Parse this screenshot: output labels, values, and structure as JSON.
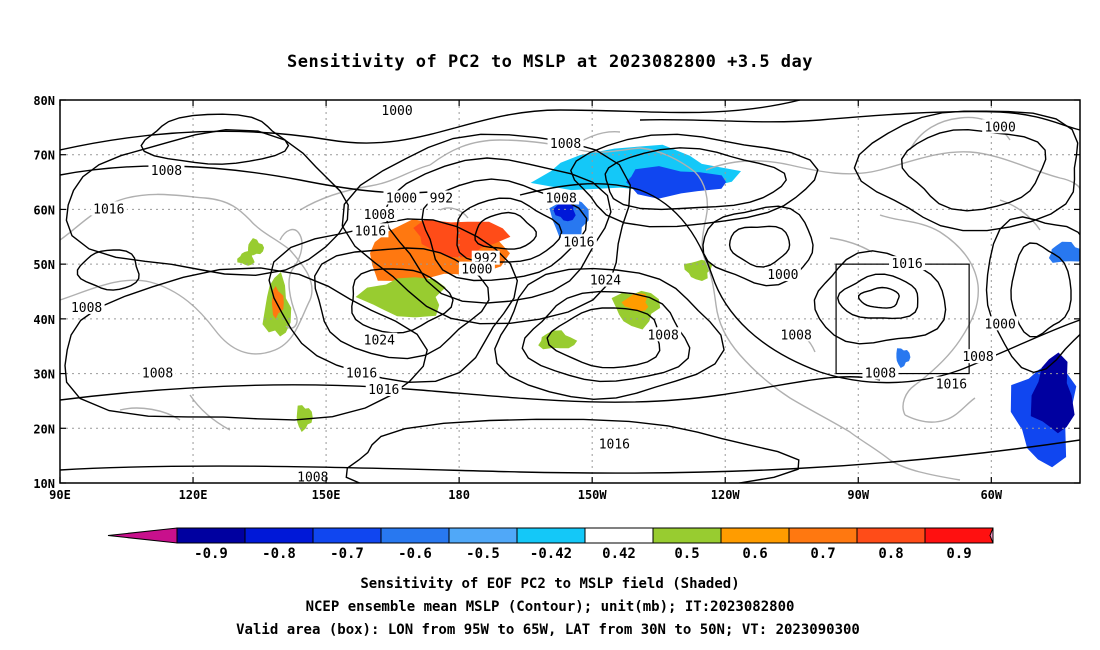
{
  "title": "Sensitivity of PC2 to MSLP at 2023082800 +3.5 day",
  "map": {
    "lon_min": 90,
    "lon_max": 320,
    "lat_min": 10,
    "lat_max": 80,
    "lat_ticks": [
      "10N",
      "20N",
      "30N",
      "40N",
      "50N",
      "60N",
      "70N",
      "80N"
    ],
    "lon_ticks": [
      "90E",
      "120E",
      "150E",
      "180",
      "150W",
      "120W",
      "90W",
      "60W"
    ],
    "grid": "dotted",
    "coastline_color": "#b0b0b0",
    "contour_color": "#000000"
  },
  "valid_box": {
    "lon_west": -95,
    "lon_east": -65,
    "lat_south": 30,
    "lat_north": 50
  },
  "contour_labels": [
    {
      "text": "1000",
      "lon": 166,
      "lat": 78
    },
    {
      "text": "1000",
      "lon": 302,
      "lat": 75
    },
    {
      "text": "1008",
      "lon": 114,
      "lat": 67
    },
    {
      "text": "1008",
      "lon": 204,
      "lat": 72
    },
    {
      "text": "1016",
      "lon": 101,
      "lat": 60
    },
    {
      "text": "1000",
      "lon": 167,
      "lat": 62
    },
    {
      "text": "992",
      "lon": 176,
      "lat": 62
    },
    {
      "text": "1008",
      "lon": 162,
      "lat": 59
    },
    {
      "text": "1016",
      "lon": 160,
      "lat": 56
    },
    {
      "text": "1008",
      "lon": 203,
      "lat": 62
    },
    {
      "text": "1016",
      "lon": 207,
      "lat": 54
    },
    {
      "text": "992",
      "lon": 186,
      "lat": 51
    },
    {
      "text": "1000",
      "lon": 184,
      "lat": 49
    },
    {
      "text": "1024",
      "lon": 213,
      "lat": 47
    },
    {
      "text": "1000",
      "lon": 253,
      "lat": 48
    },
    {
      "text": "1016",
      "lon": 281,
      "lat": 50
    },
    {
      "text": "1008",
      "lon": 96,
      "lat": 42
    },
    {
      "text": "1024",
      "lon": 162,
      "lat": 36
    },
    {
      "text": "1008",
      "lon": 226,
      "lat": 37
    },
    {
      "text": "1008",
      "lon": 256,
      "lat": 37
    },
    {
      "text": "1000",
      "lon": 302,
      "lat": 39
    },
    {
      "text": "1008",
      "lon": 112,
      "lat": 30
    },
    {
      "text": "1016",
      "lon": 158,
      "lat": 30
    },
    {
      "text": "1016",
      "lon": 163,
      "lat": 27
    },
    {
      "text": "1008",
      "lon": 297,
      "lat": 33
    },
    {
      "text": "1008",
      "lon": 275,
      "lat": 30
    },
    {
      "text": "1016",
      "lon": 291,
      "lat": 28
    },
    {
      "text": "1016",
      "lon": 215,
      "lat": 17
    },
    {
      "text": "1008",
      "lon": 147,
      "lat": 11
    }
  ],
  "shaded_regions": [
    {
      "value": -0.45,
      "lon": 220,
      "lat": 67
    },
    {
      "value": -0.6,
      "lon": 228,
      "lat": 65
    },
    {
      "value": -0.5,
      "lon": 205,
      "lat": 58
    },
    {
      "value": -0.7,
      "lon": 204,
      "lat": 60
    },
    {
      "value": -0.5,
      "lon": 317,
      "lat": 52
    },
    {
      "value": -0.5,
      "lon": 280,
      "lat": 33
    },
    {
      "value": -0.6,
      "lon": 312,
      "lat": 23
    },
    {
      "value": -0.8,
      "lon": 314,
      "lat": 26
    },
    {
      "value": 0.6,
      "lon": 174,
      "lat": 52
    },
    {
      "value": 0.7,
      "lon": 180,
      "lat": 55
    },
    {
      "value": 0.45,
      "lon": 168,
      "lat": 44
    },
    {
      "value": 0.45,
      "lon": 139,
      "lat": 42
    },
    {
      "value": 0.6,
      "lon": 139,
      "lat": 43
    },
    {
      "value": 0.45,
      "lon": 220,
      "lat": 42
    },
    {
      "value": 0.55,
      "lon": 220,
      "lat": 43
    },
    {
      "value": 0.45,
      "lon": 202,
      "lat": 36
    },
    {
      "value": 0.45,
      "lon": 145,
      "lat": 22
    },
    {
      "value": 0.45,
      "lon": 234,
      "lat": 49
    },
    {
      "value": 0.45,
      "lon": 132,
      "lat": 51
    },
    {
      "value": 0.45,
      "lon": 134,
      "lat": 53
    }
  ],
  "colorbar": {
    "labels": [
      "-0.9",
      "-0.8",
      "-0.7",
      "-0.6",
      "-0.5",
      "-0.42",
      "0.42",
      "0.5",
      "0.6",
      "0.7",
      "0.8",
      "0.9"
    ],
    "colors": [
      "#0000a0",
      "#0018d8",
      "#1046f0",
      "#2878f0",
      "#50a8f8",
      "#14c8f8",
      "#ffffff",
      "#98cc30",
      "#ff9c00",
      "#ff7810",
      "#ff4c18",
      "#ff1010"
    ],
    "low_end_color": "#c8108c",
    "high_end_color": "#f898c8"
  },
  "captions": [
    "Sensitivity of EOF PC2 to MSLP field (Shaded)",
    "NCEP ensemble mean MSLP (Contour); unit(mb); IT:2023082800",
    "Valid area (box): LON from 95W to 65W, LAT from 30N to 50N; VT: 2023090300"
  ]
}
